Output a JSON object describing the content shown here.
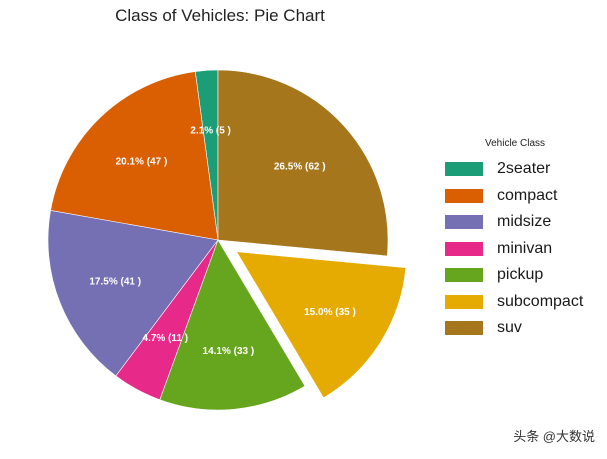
{
  "chart_data": {
    "type": "pie",
    "title": "Class of Vehicles: Pie Chart",
    "legend_title": "Vehicle Class",
    "legend_position": "right",
    "start_angle_deg": 90,
    "explode": "subcompact",
    "slices": [
      {
        "label": "2seater",
        "value": 5,
        "percent_label": "2.1% (5 )",
        "color": "#1b9e77"
      },
      {
        "label": "compact",
        "value": 47,
        "percent_label": "20.1% (47 )",
        "color": "#d95f02"
      },
      {
        "label": "midsize",
        "value": 41,
        "percent_label": "17.5% (41 )",
        "color": "#7570b3"
      },
      {
        "label": "minivan",
        "value": 11,
        "percent_label": "4.7% (11 )",
        "color": "#e7298a"
      },
      {
        "label": "pickup",
        "value": 33,
        "percent_label": "14.1% (33 )",
        "color": "#66a61e"
      },
      {
        "label": "subcompact",
        "value": 35,
        "percent_label": "15.0% (35 )",
        "color": "#e6ab02"
      },
      {
        "label": "suv",
        "value": 62,
        "percent_label": "26.5% (62 )",
        "color": "#a6761d"
      }
    ]
  },
  "watermark": "头条 @大数说"
}
